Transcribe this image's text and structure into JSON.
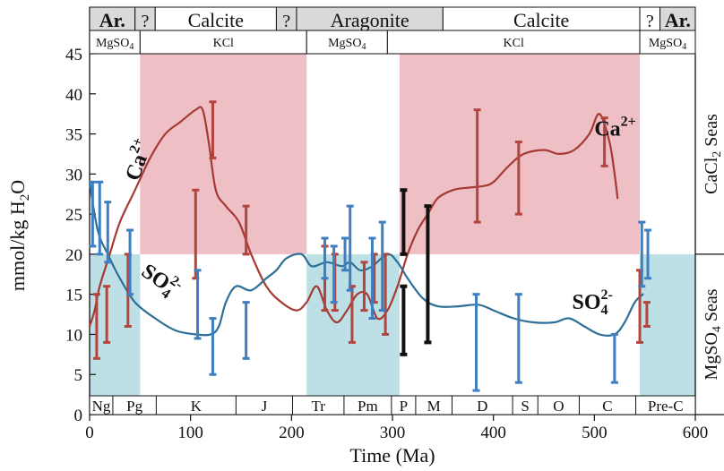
{
  "chart_data": {
    "type": "line",
    "xlabel": "Time (Ma)",
    "ylabel": "mmol/kg H2O",
    "xlim": [
      0,
      600
    ],
    "ylim": [
      0,
      45
    ],
    "x_ticks": [
      0,
      100,
      200,
      300,
      400,
      500,
      600
    ],
    "y_ticks": [
      0,
      5,
      10,
      15,
      20,
      25,
      30,
      35,
      40,
      45
    ],
    "mineralogy_row": [
      {
        "label": "Ar.",
        "from": 0,
        "to": 45,
        "style": "gray"
      },
      {
        "label": "?",
        "from": 45,
        "to": 65,
        "style": "gray"
      },
      {
        "label": "Calcite",
        "from": 65,
        "to": 185,
        "style": "white"
      },
      {
        "label": "?",
        "from": 185,
        "to": 205,
        "style": "gray"
      },
      {
        "label": "Aragonite",
        "from": 205,
        "to": 350,
        "style": "gray"
      },
      {
        "label": "Calcite",
        "from": 350,
        "to": 545,
        "style": "white"
      },
      {
        "label": "?",
        "from": 545,
        "to": 565,
        "style": "white"
      },
      {
        "label": "Ar.",
        "from": 565,
        "to": 600,
        "style": "gray"
      }
    ],
    "evaporite_row": [
      {
        "label": "MgSO",
        "sub": "4",
        "from": 0,
        "to": 50
      },
      {
        "label": "KCl",
        "from": 50,
        "to": 215
      },
      {
        "label": "MgSO",
        "sub": "4",
        "from": 215,
        "to": 295
      },
      {
        "label": "KCl",
        "from": 295,
        "to": 545
      },
      {
        "label": "MgSO",
        "sub": "4",
        "from": 545,
        "to": 600
      }
    ],
    "periods": [
      {
        "label": "Ng",
        "from": 0,
        "to": 23
      },
      {
        "label": "Pg",
        "from": 23,
        "to": 66
      },
      {
        "label": "K",
        "from": 66,
        "to": 145
      },
      {
        "label": "J",
        "from": 145,
        "to": 201
      },
      {
        "label": "Tr",
        "from": 201,
        "to": 252
      },
      {
        "label": "Pm",
        "from": 252,
        "to": 299
      },
      {
        "label": "P",
        "from": 299,
        "to": 323
      },
      {
        "label": "M",
        "from": 323,
        "to": 359
      },
      {
        "label": "D",
        "from": 359,
        "to": 419
      },
      {
        "label": "S",
        "from": 419,
        "to": 444
      },
      {
        "label": "O",
        "from": 444,
        "to": 485
      },
      {
        "label": "C",
        "from": 485,
        "to": 541
      },
      {
        "label": "Pre-C",
        "from": 541,
        "to": 600
      }
    ],
    "sea_labels": [
      {
        "label": "CaCl",
        "sub": "2",
        "suffix": " Seas",
        "ymin": 20,
        "ymax": 45
      },
      {
        "label": "MgSO",
        "sub": "4",
        "suffix": " Seas",
        "ymin": 0,
        "ymax": 20
      }
    ],
    "regions": [
      {
        "name": "cacl2",
        "color": "#efbfc6",
        "xmin": 50,
        "xmax": 215,
        "ymin": 20,
        "ymax": 45
      },
      {
        "name": "cacl2",
        "color": "#efbfc6",
        "xmin": 307,
        "xmax": 545,
        "ymin": 20,
        "ymax": 45
      },
      {
        "name": "mgso4",
        "color": "#bde0e7",
        "xmin": 0,
        "xmax": 50,
        "ymin": 0,
        "ymax": 20
      },
      {
        "name": "mgso4",
        "color": "#bde0e7",
        "xmin": 215,
        "xmax": 307,
        "ymin": 0,
        "ymax": 20
      },
      {
        "name": "mgso4",
        "color": "#bde0e7",
        "xmin": 545,
        "xmax": 600,
        "ymin": 0,
        "ymax": 20
      }
    ],
    "series": [
      {
        "name": "Ca2+",
        "color": "#a53a33",
        "points": [
          [
            0,
            11
          ],
          [
            5,
            13
          ],
          [
            10,
            16
          ],
          [
            20,
            20
          ],
          [
            30,
            24
          ],
          [
            45,
            28
          ],
          [
            60,
            32
          ],
          [
            75,
            35
          ],
          [
            90,
            36.5
          ],
          [
            105,
            38
          ],
          [
            112,
            38
          ],
          [
            118,
            34
          ],
          [
            125,
            28
          ],
          [
            135,
            26
          ],
          [
            148,
            24
          ],
          [
            160,
            20
          ],
          [
            175,
            16
          ],
          [
            190,
            14
          ],
          [
            205,
            13
          ],
          [
            215,
            14
          ],
          [
            225,
            16
          ],
          [
            235,
            13
          ],
          [
            245,
            11.5
          ],
          [
            255,
            13
          ],
          [
            265,
            15
          ],
          [
            275,
            15
          ],
          [
            285,
            12
          ],
          [
            295,
            13
          ],
          [
            305,
            16
          ],
          [
            315,
            20
          ],
          [
            325,
            23
          ],
          [
            335,
            25
          ],
          [
            345,
            27
          ],
          [
            360,
            28
          ],
          [
            375,
            28.3
          ],
          [
            390,
            28.5
          ],
          [
            400,
            29
          ],
          [
            415,
            31
          ],
          [
            430,
            32.5
          ],
          [
            450,
            33
          ],
          [
            465,
            32.5
          ],
          [
            480,
            33
          ],
          [
            495,
            35
          ],
          [
            505,
            37.5
          ],
          [
            515,
            34
          ],
          [
            520,
            30
          ],
          [
            523,
            27
          ]
        ]
      },
      {
        "name": "SO42-",
        "color": "#2e6f95",
        "points": [
          [
            0,
            29
          ],
          [
            8,
            23
          ],
          [
            18,
            20
          ],
          [
            30,
            17
          ],
          [
            45,
            14
          ],
          [
            65,
            12
          ],
          [
            85,
            10.5
          ],
          [
            105,
            10
          ],
          [
            120,
            10
          ],
          [
            128,
            11
          ],
          [
            135,
            14
          ],
          [
            145,
            16
          ],
          [
            160,
            15.5
          ],
          [
            175,
            17
          ],
          [
            185,
            18
          ],
          [
            195,
            19.5
          ],
          [
            210,
            20
          ],
          [
            220,
            18.5
          ],
          [
            235,
            19
          ],
          [
            250,
            18.5
          ],
          [
            258,
            19
          ],
          [
            268,
            18
          ],
          [
            280,
            18.5
          ],
          [
            295,
            20
          ],
          [
            305,
            19
          ],
          [
            315,
            17
          ],
          [
            330,
            14.5
          ],
          [
            345,
            13.5
          ],
          [
            365,
            13.5
          ],
          [
            385,
            13.7
          ],
          [
            400,
            13
          ],
          [
            420,
            12
          ],
          [
            440,
            11.5
          ],
          [
            460,
            11.5
          ],
          [
            475,
            12
          ],
          [
            490,
            11
          ],
          [
            505,
            10
          ],
          [
            520,
            10
          ],
          [
            530,
            11.5
          ],
          [
            540,
            14
          ],
          [
            548,
            15
          ]
        ]
      }
    ],
    "error_bars": [
      {
        "series": "Ca2+",
        "x": 7,
        "low": 7,
        "high": 15
      },
      {
        "series": "Ca2+",
        "x": 17,
        "low": 9,
        "high": 16
      },
      {
        "series": "Ca2+",
        "x": 38,
        "low": 11,
        "high": 20
      },
      {
        "series": "Ca2+",
        "x": 105,
        "low": 17,
        "high": 28
      },
      {
        "series": "Ca2+",
        "x": 122,
        "low": 32,
        "high": 39
      },
      {
        "series": "Ca2+",
        "x": 155,
        "low": 20,
        "high": 26
      },
      {
        "series": "Ca2+",
        "x": 233,
        "low": 13,
        "high": 21
      },
      {
        "series": "Ca2+",
        "x": 243,
        "low": 13,
        "high": 20
      },
      {
        "series": "Ca2+",
        "x": 260,
        "low": 9,
        "high": 16
      },
      {
        "series": "Ca2+",
        "x": 272,
        "low": 13,
        "high": 19
      },
      {
        "series": "Ca2+",
        "x": 282,
        "low": 14,
        "high": 20
      },
      {
        "series": "Ca2+",
        "x": 293,
        "low": 10,
        "high": 20
      },
      {
        "series": "Ca2+",
        "x": 384,
        "low": 24,
        "high": 38
      },
      {
        "series": "Ca2+",
        "x": 425,
        "low": 25,
        "high": 34
      },
      {
        "series": "Ca2+",
        "x": 510,
        "low": 31,
        "high": 37
      },
      {
        "series": "Ca2+",
        "x": 545,
        "low": 9,
        "high": 18
      },
      {
        "series": "Ca2+",
        "x": 552,
        "low": 11,
        "high": 14
      },
      {
        "series": "SO42-",
        "x": 3,
        "low": 21,
        "high": 29
      },
      {
        "series": "SO42-",
        "x": 10,
        "low": 20,
        "high": 29
      },
      {
        "series": "SO42-",
        "x": 18,
        "low": 19,
        "high": 26.5
      },
      {
        "series": "SO42-",
        "x": 40,
        "low": 15,
        "high": 23
      },
      {
        "series": "SO42-",
        "x": 107,
        "low": 9.5,
        "high": 18
      },
      {
        "series": "SO42-",
        "x": 122,
        "low": 5,
        "high": 12
      },
      {
        "series": "SO42-",
        "x": 155,
        "low": 7,
        "high": 14
      },
      {
        "series": "SO42-",
        "x": 233,
        "low": 17,
        "high": 22
      },
      {
        "series": "SO42-",
        "x": 242,
        "low": 14,
        "high": 21
      },
      {
        "series": "SO42-",
        "x": 253,
        "low": 18,
        "high": 22
      },
      {
        "series": "SO42-",
        "x": 258,
        "low": 15.5,
        "high": 26
      },
      {
        "series": "SO42-",
        "x": 280,
        "low": 12,
        "high": 22
      },
      {
        "series": "SO42-",
        "x": 290,
        "low": 13,
        "high": 24
      },
      {
        "series": "SO42-",
        "x": 383,
        "low": 3,
        "high": 15
      },
      {
        "series": "SO42-",
        "x": 425,
        "low": 4,
        "high": 15
      },
      {
        "series": "SO42-",
        "x": 520,
        "low": 4,
        "high": 10
      },
      {
        "series": "SO42-",
        "x": 547,
        "low": 16,
        "high": 24
      },
      {
        "series": "SO42-",
        "x": 553,
        "low": 17,
        "high": 23
      },
      {
        "series": "other",
        "x": 311,
        "low": 20,
        "high": 28
      },
      {
        "series": "other",
        "x": 311,
        "low": 7.5,
        "high": 16
      },
      {
        "series": "other",
        "x": 335,
        "low": 9,
        "high": 26
      }
    ],
    "annotations": [
      {
        "text": "Ca",
        "sup": "2+",
        "x": 500,
        "y": 34.8,
        "color": "#111111",
        "rotate": 0
      },
      {
        "text": "Ca",
        "sup": "2+",
        "x": 48,
        "y": 29,
        "color": "#111111",
        "rotate": -70
      },
      {
        "text": "SO",
        "sub": "4",
        "sup": "2-",
        "x": 478,
        "y": 13.2,
        "color": "#111111",
        "rotate": 0
      },
      {
        "text": "SO",
        "sub": "4",
        "sup": "2-",
        "x": 50,
        "y": 17.5,
        "color": "#111111",
        "rotate": 35
      }
    ]
  }
}
